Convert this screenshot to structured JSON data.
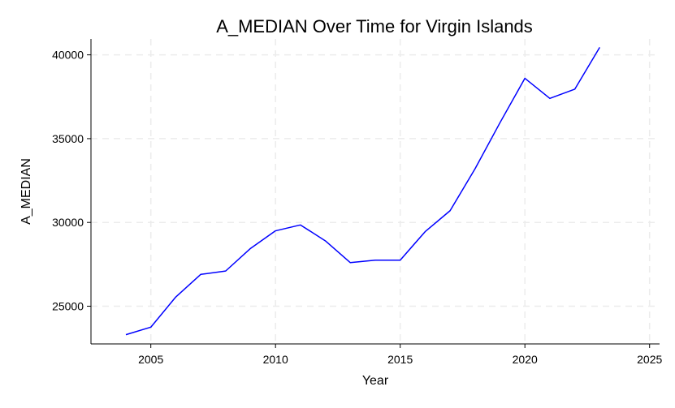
{
  "chart_data": {
    "type": "line",
    "title": "A_MEDIAN Over Time for Virgin Islands",
    "xlabel": "Year",
    "ylabel": "A_MEDIAN",
    "xlim": [
      2002.6,
      2025.4
    ],
    "ylim": [
      22750,
      40950
    ],
    "xticks": [
      2005,
      2010,
      2015,
      2020,
      2025
    ],
    "yticks": [
      25000,
      30000,
      35000,
      40000
    ],
    "grid": true,
    "line_color": "#0000ff",
    "grid_color": "#ececec",
    "series": [
      {
        "x": [
          2004,
          2005,
          2006,
          2007,
          2008,
          2009,
          2010,
          2011,
          2012,
          2013,
          2014,
          2015,
          2016,
          2017,
          2018,
          2019,
          2020,
          2021,
          2022,
          2023
        ],
        "values": [
          23300,
          23750,
          25550,
          26900,
          27100,
          28450,
          29500,
          29850,
          28900,
          27600,
          27750,
          27750,
          29450,
          30700,
          33200,
          35950,
          38600,
          37400,
          37950,
          40450
        ]
      }
    ]
  }
}
